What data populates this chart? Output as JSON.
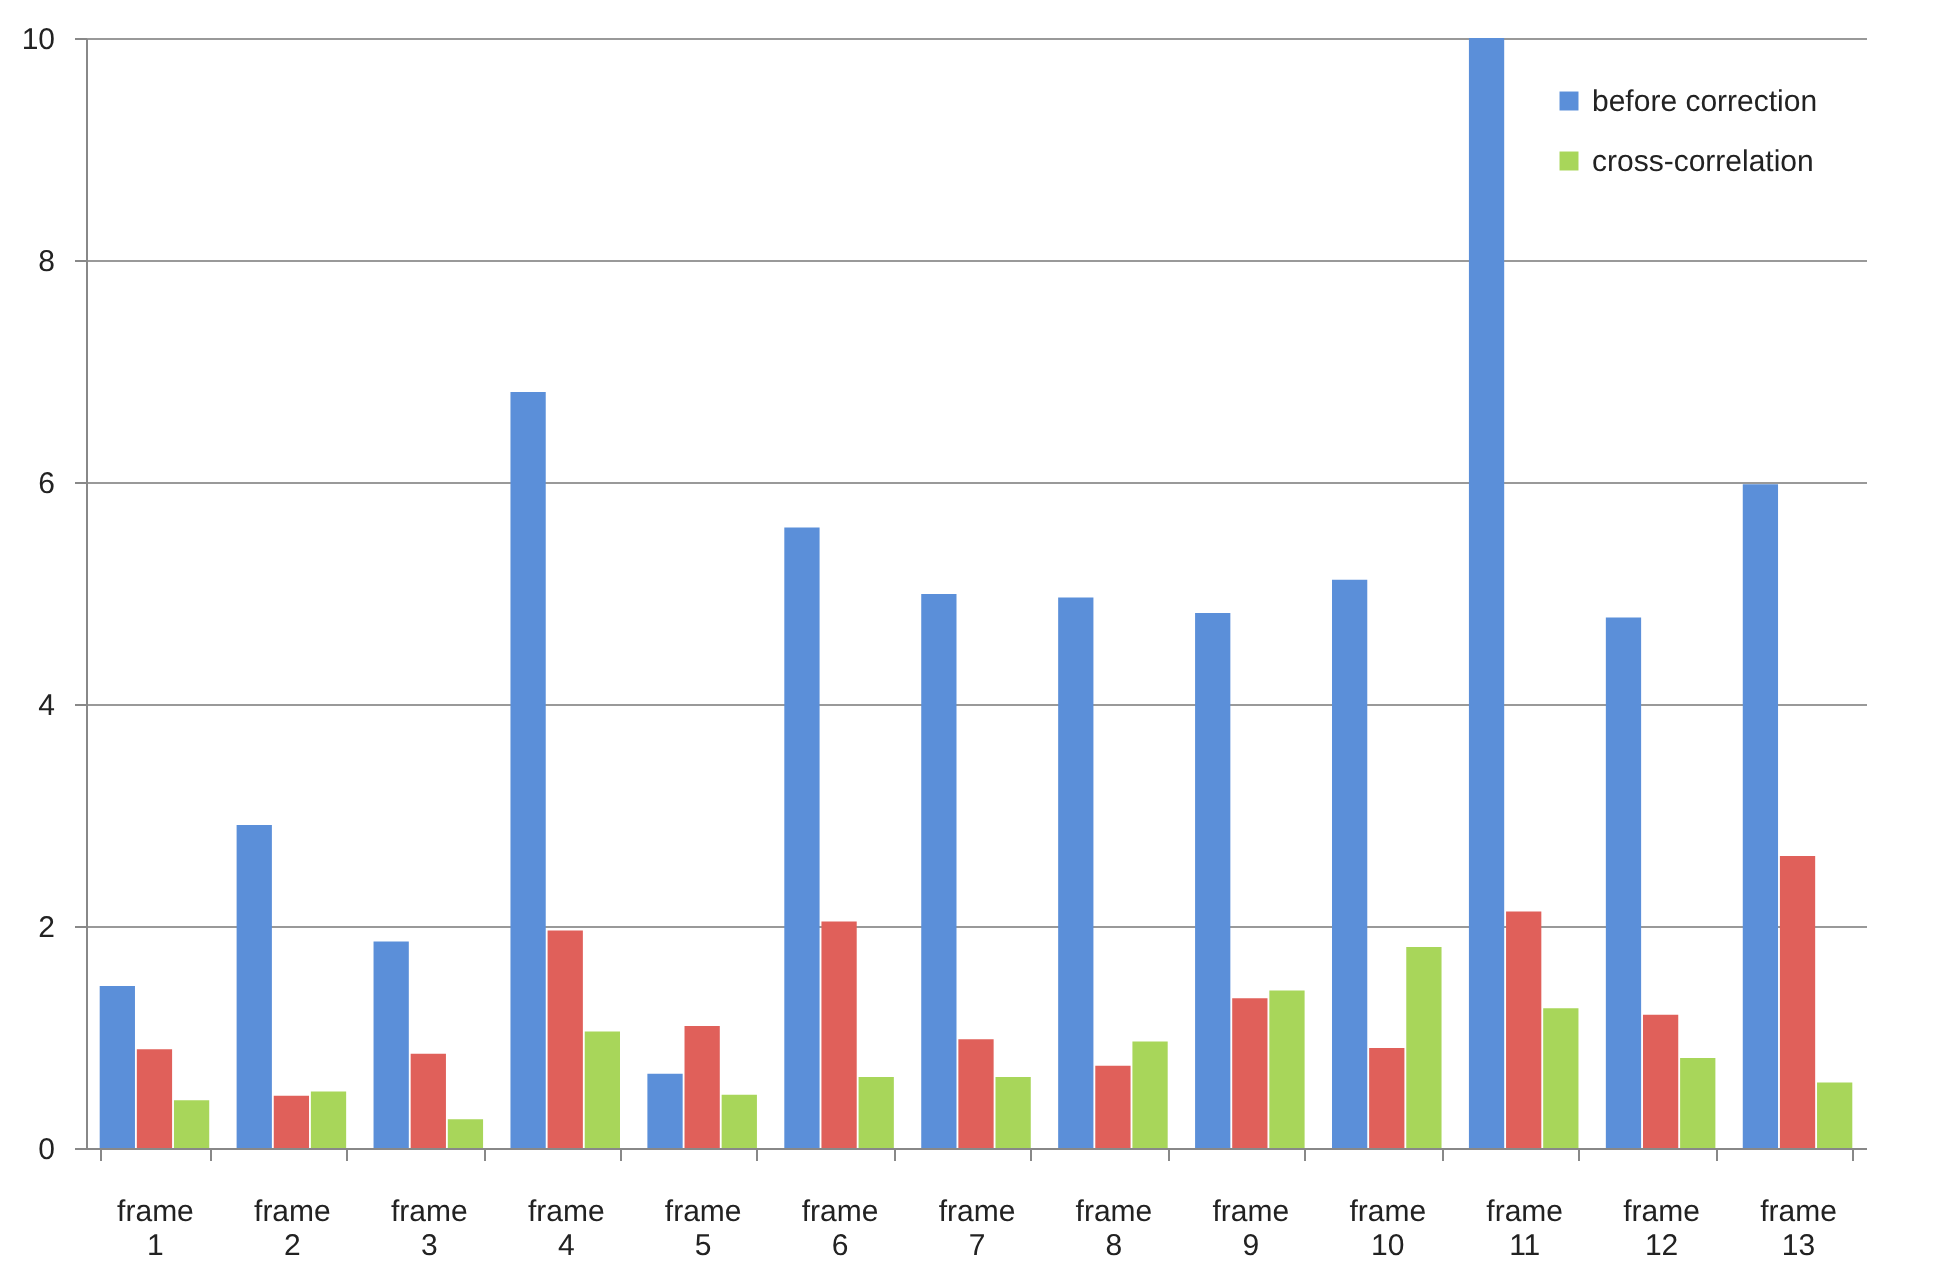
{
  "chart_data": {
    "type": "bar",
    "categories": [
      "frame 1",
      "frame 2",
      "frame 3",
      "frame 4",
      "frame 5",
      "frame 6",
      "frame 7",
      "frame 8",
      "frame 9",
      "frame 10",
      "frame 11",
      "frame 12",
      "frame 13"
    ],
    "series": [
      {
        "name": "before correction",
        "color": "#5b8fd9",
        "values": [
          1.46,
          2.91,
          1.86,
          6.81,
          0.67,
          5.59,
          4.99,
          4.96,
          4.82,
          5.12,
          10,
          4.78,
          5.98
        ]
      },
      {
        "color": "#e0605a",
        "values": [
          0.89,
          0.47,
          0.85,
          1.96,
          1.1,
          2.04,
          0.98,
          0.74,
          1.35,
          0.9,
          2.13,
          1.2,
          2.63
        ]
      },
      {
        "name": "cross-correlation",
        "color": "#a8d65a",
        "values": [
          0.43,
          0.51,
          0.26,
          1.05,
          0.48,
          0.64,
          0.64,
          0.96,
          1.42,
          1.81,
          1.26,
          0.81,
          0.59
        ]
      }
    ],
    "ylim": [
      0,
      10
    ],
    "yticks": [
      0,
      2,
      4,
      6,
      8,
      10
    ],
    "grid": "y",
    "legend": "top right"
  }
}
